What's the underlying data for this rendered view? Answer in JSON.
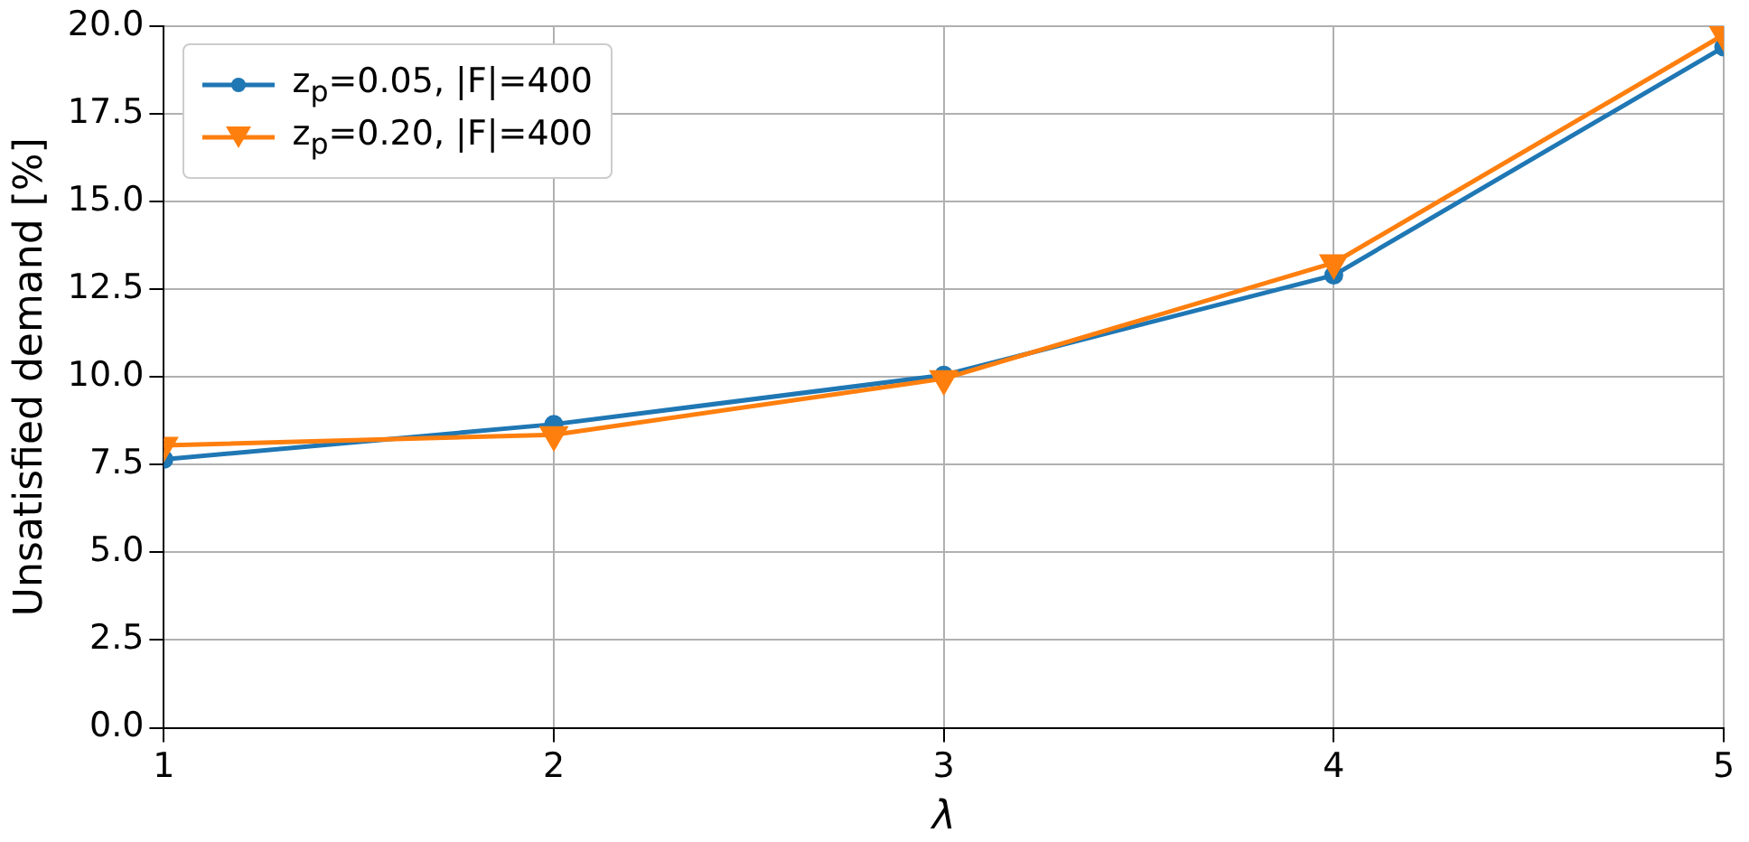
{
  "chart_data": {
    "type": "line",
    "xlabel": "λ",
    "ylabel": "Unsatisfied demand [%]",
    "x": [
      1,
      2,
      3,
      4,
      5
    ],
    "series": [
      {
        "name": "z$_{p}$=0.05, |F|=400",
        "color": "#1f77b4",
        "marker": "circle",
        "values": [
          7.65,
          8.65,
          10.05,
          12.9,
          19.4
        ]
      },
      {
        "name": "z$_{p}$=0.20, |F|=400",
        "color": "#ff7f0e",
        "marker": "triangle",
        "values": [
          8.05,
          8.35,
          9.95,
          13.25,
          19.75
        ]
      }
    ],
    "xlim": [
      1,
      5
    ],
    "xticks": [
      1,
      2,
      3,
      4,
      5
    ],
    "ylim": [
      0,
      20
    ],
    "yticks": [
      {
        "value": 0,
        "label": "0.0"
      },
      {
        "value": 2.5,
        "label": "2.5"
      },
      {
        "value": 5,
        "label": "5.0"
      },
      {
        "value": 7.5,
        "label": "7.5"
      },
      {
        "value": 10,
        "label": "10.0"
      },
      {
        "value": 12.5,
        "label": "12.5"
      },
      {
        "value": 15,
        "label": "15.0"
      },
      {
        "value": 17.5,
        "label": "17.5"
      },
      {
        "value": 20,
        "label": "20.0"
      }
    ],
    "grid": true,
    "legend": "top left",
    "line_style": "solid"
  }
}
